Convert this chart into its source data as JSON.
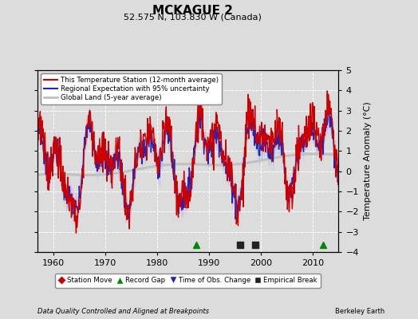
{
  "title": "MCKAGUE 2",
  "subtitle": "52.575 N, 103.830 W (Canada)",
  "ylabel": "Temperature Anomaly (°C)",
  "xlabel_note": "Data Quality Controlled and Aligned at Breakpoints",
  "credit": "Berkeley Earth",
  "ylim": [
    -4,
    5
  ],
  "xlim": [
    1957,
    2015
  ],
  "xticks": [
    1960,
    1970,
    1980,
    1990,
    2000,
    2010
  ],
  "yticks": [
    -4,
    -3,
    -2,
    -1,
    0,
    1,
    2,
    3,
    4,
    5
  ],
  "bg_color": "#dcdcdc",
  "plot_bg_color": "#dcdcdc",
  "station_color": "#cc0000",
  "regional_color": "#2222bb",
  "regional_fill_color": "#9999dd",
  "global_color": "#c0c0c0",
  "legend_items": [
    {
      "label": "This Temperature Station (12-month average)",
      "color": "#cc0000",
      "lw": 1.5
    },
    {
      "label": "Regional Expectation with 95% uncertainty",
      "color": "#2222bb",
      "lw": 1.5
    },
    {
      "label": "Global Land (5-year average)",
      "color": "#c0c0c0",
      "lw": 2.0
    }
  ],
  "event_markers": [
    {
      "type": "record_gap",
      "year": 1987.5,
      "symbol": "^",
      "color": "#008800"
    },
    {
      "type": "empirical_break",
      "year": 1996.0,
      "symbol": "s",
      "color": "#222222"
    },
    {
      "type": "empirical_break",
      "year": 1999.0,
      "symbol": "s",
      "color": "#222222"
    },
    {
      "type": "record_gap",
      "year": 2012.0,
      "symbol": "^",
      "color": "#008800"
    }
  ],
  "legend_event_items": [
    {
      "label": "Station Move",
      "symbol": "D",
      "color": "#cc0000"
    },
    {
      "label": "Record Gap",
      "symbol": "^",
      "color": "#008800"
    },
    {
      "label": "Time of Obs. Change",
      "symbol": "v",
      "color": "#2222bb"
    },
    {
      "label": "Empirical Break",
      "symbol": "s",
      "color": "#222222"
    }
  ],
  "grid_color": "#ffffff",
  "grid_lw": 0.7,
  "axes_lw": 0.8
}
